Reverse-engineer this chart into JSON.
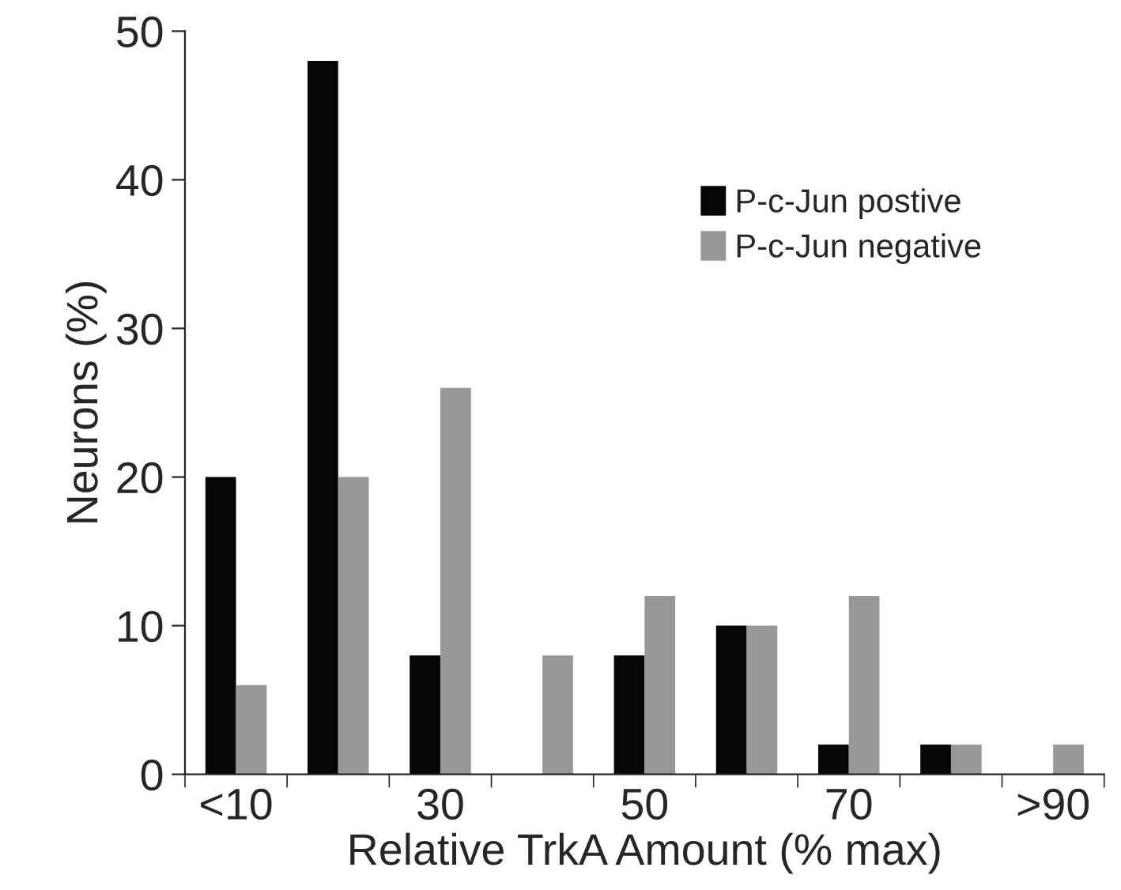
{
  "chart_data": {
    "type": "bar",
    "xlabel": "Relative TrkA Amount (% max)",
    "ylabel": "Neurons (%)",
    "categories": [
      "<10",
      null,
      "30",
      null,
      "50",
      null,
      "70",
      null,
      ">90"
    ],
    "series": [
      {
        "name": "P-c-Jun postive",
        "color": "#050605",
        "values": [
          20,
          48,
          8,
          0,
          8,
          10,
          2,
          2,
          0
        ]
      },
      {
        "name": "P-c-Jun negative",
        "color": "#979897",
        "values": [
          6,
          20,
          26,
          8,
          12,
          10,
          12,
          2,
          2
        ]
      }
    ],
    "ylim": [
      0,
      50
    ],
    "yticks": [
      0,
      10,
      20,
      30,
      40,
      50
    ],
    "legend": "top right",
    "grid": false
  }
}
